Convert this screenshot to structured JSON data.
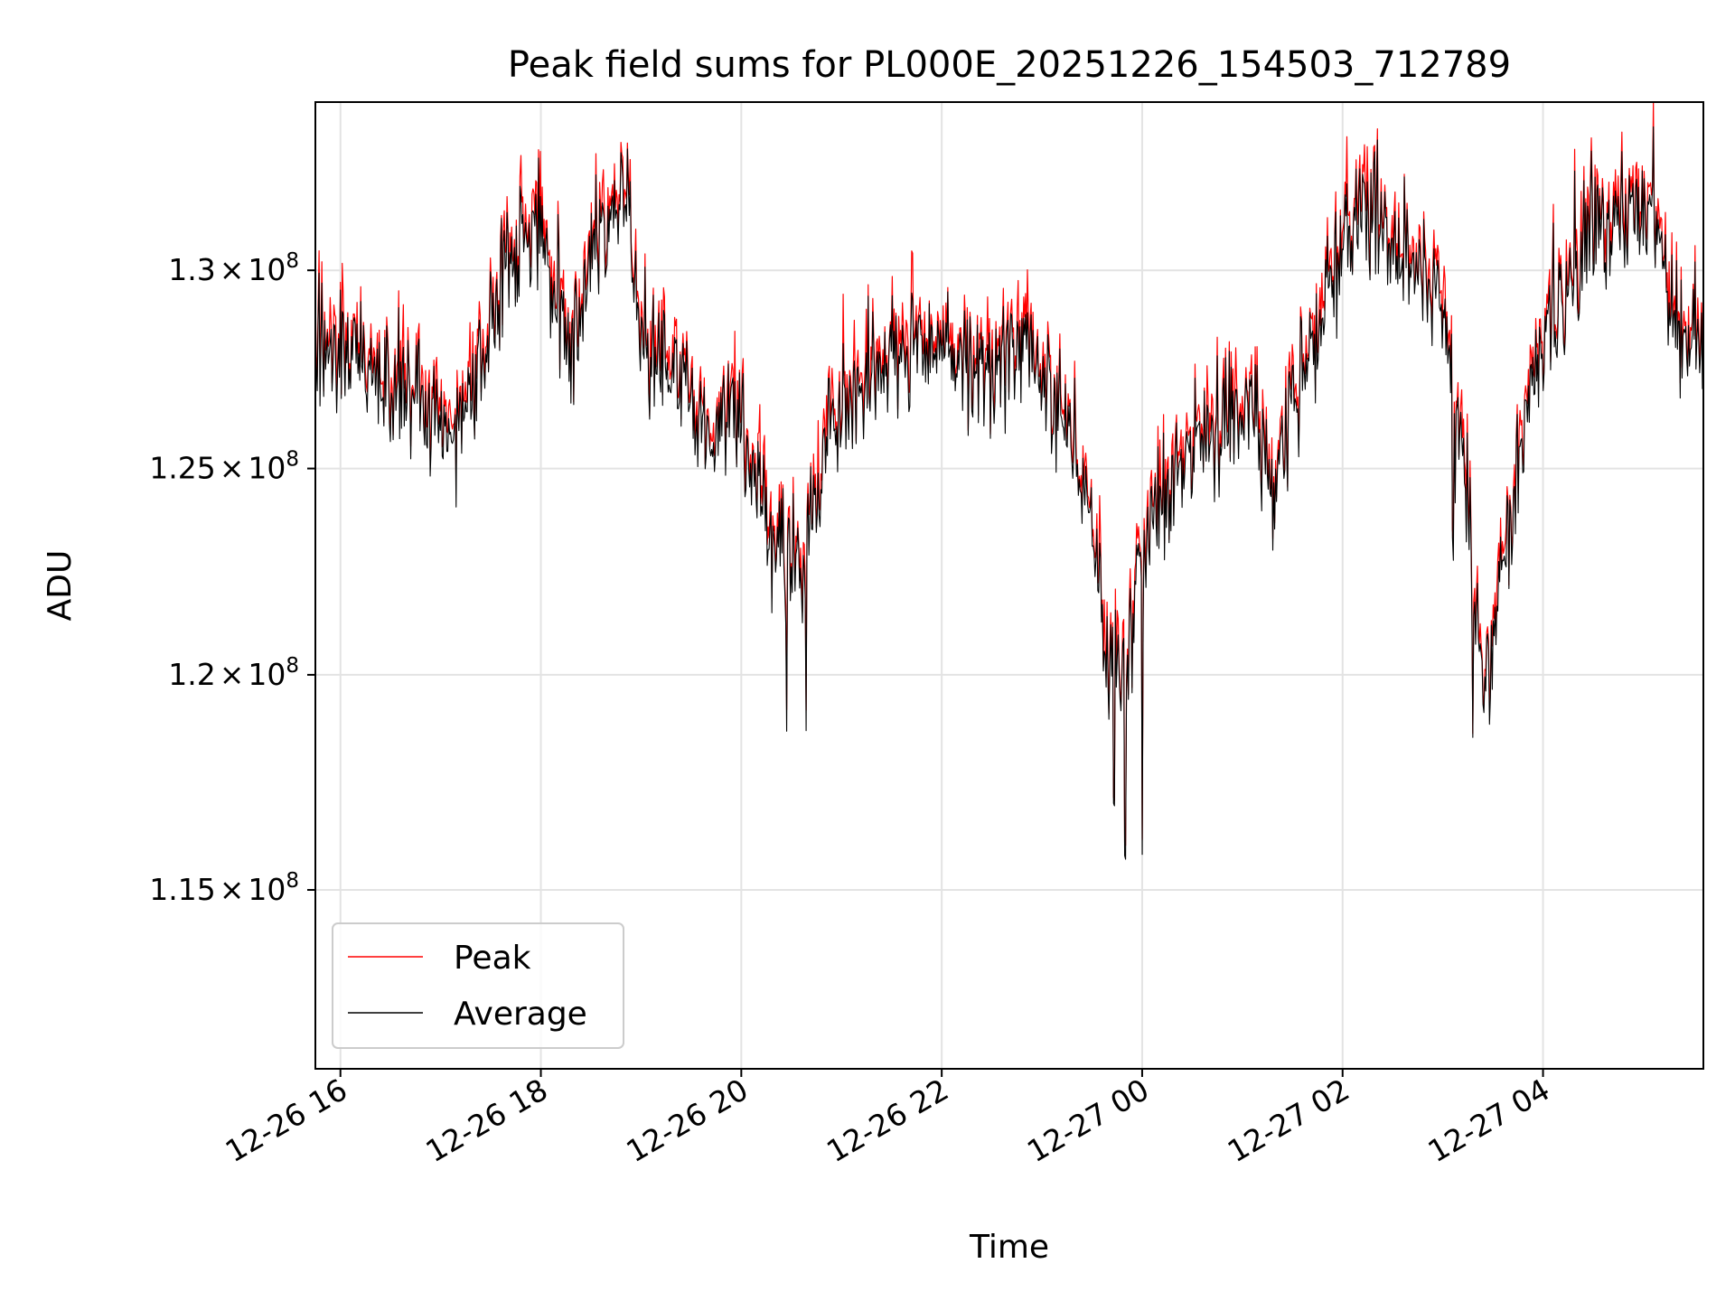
{
  "chart_data": {
    "type": "line",
    "title": "Peak field sums for PL000E_20251226_154503_712789",
    "xlabel": "Time",
    "ylabel": "ADU",
    "grid": true,
    "legend_position": "lower-left",
    "y_scale": "log",
    "xlim_hours": [
      15.75,
      29.6
    ],
    "ylim": [
      111000000,
      134400000
    ],
    "x_ticks": [
      {
        "hour": 16,
        "label": "12-26 16"
      },
      {
        "hour": 18,
        "label": "12-26 18"
      },
      {
        "hour": 20,
        "label": "12-26 20"
      },
      {
        "hour": 22,
        "label": "12-26 22"
      },
      {
        "hour": 24,
        "label": "12-27 00"
      },
      {
        "hour": 26,
        "label": "12-27 02"
      },
      {
        "hour": 28,
        "label": "12-27 04"
      }
    ],
    "y_ticks": [
      {
        "value": 130000000,
        "mantissa": "1.3",
        "exponent": "8"
      },
      {
        "value": 125000000,
        "mantissa": "1.25",
        "exponent": "8"
      },
      {
        "value": 120000000,
        "mantissa": "1.2",
        "exponent": "8"
      },
      {
        "value": 115000000,
        "mantissa": "1.15",
        "exponent": "8"
      }
    ],
    "series": [
      {
        "name": "Peak",
        "color": "#ff0000",
        "noise_range": [
          0.0005,
          0.0045
        ]
      },
      {
        "name": "Average",
        "color": "#000000",
        "noise_range": [
          -0.003,
          0.003
        ]
      }
    ],
    "baseline": {
      "hours": [
        15.75,
        16.0,
        16.4,
        16.8,
        17.2,
        17.5,
        17.8,
        18.0,
        18.3,
        18.6,
        18.85,
        19.0,
        19.3,
        19.7,
        20.0,
        20.3,
        20.6,
        20.9,
        21.2,
        21.6,
        22.0,
        22.4,
        22.8,
        23.1,
        23.4,
        23.6,
        23.8,
        24.0,
        24.3,
        24.6,
        25.0,
        25.3,
        25.6,
        26.0,
        26.3,
        26.6,
        26.8,
        27.0,
        27.2,
        27.4,
        27.6,
        27.9,
        28.2,
        28.5,
        28.8,
        29.1,
        29.3,
        29.6
      ],
      "values": [
        128400000,
        128000000,
        127300000,
        126800000,
        125800000,
        129000000,
        131000000,
        130800000,
        128400000,
        130800000,
        132000000,
        128300000,
        127500000,
        125800000,
        126500000,
        123200000,
        122800000,
        126200000,
        127400000,
        128200000,
        128000000,
        127300000,
        128200000,
        126800000,
        125000000,
        121300000,
        119800000,
        122800000,
        124900000,
        125700000,
        126700000,
        124800000,
        127600000,
        130600000,
        131900000,
        130400000,
        129800000,
        129000000,
        125400000,
        119400000,
        122600000,
        127700000,
        129400000,
        131200000,
        131300000,
        131800000,
        128800000,
        128000000
      ]
    }
  }
}
